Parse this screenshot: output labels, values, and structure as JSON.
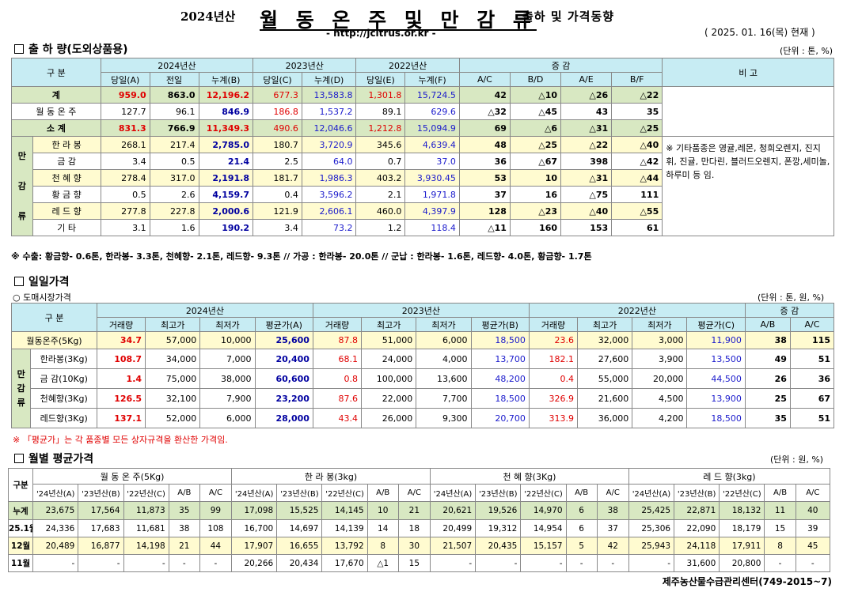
{
  "header": {
    "year": "2024년산",
    "main": "월 동 온 주 및 만 감 류",
    "sub": "출하 및 가격동향",
    "url": "- http://jcitrus.or.kr -",
    "asof": "( 2025. 01. 16(목) 현재 )"
  },
  "ship": {
    "title": "출 하 량(도외상품용)",
    "unit": "(단위 : 톤, %)",
    "h_div": "구    분",
    "h_y2024": "2024년산",
    "h_y2023": "2023년산",
    "h_y2022": "2022년산",
    "h_change": "증    감",
    "h_remark": "비 고",
    "sub": [
      "당일(A)",
      "전일",
      "누계(B)",
      "당일(C)",
      "누계(D)",
      "당일(E)",
      "누계(F)",
      "A/C",
      "B/D",
      "A/E",
      "B/F"
    ],
    "side_label": [
      "만",
      "감",
      "류"
    ],
    "rows": [
      {
        "name": "계",
        "v": [
          "959.0",
          "863.0",
          "12,196.2",
          "677.3",
          "13,583.8",
          "1,301.8",
          "15,724.5",
          "42",
          "△10",
          "△26",
          "△22"
        ]
      },
      {
        "name": "월 동 온 주",
        "v": [
          "127.7",
          "96.1",
          "846.9",
          "186.8",
          "1,537.2",
          "89.1",
          "629.6",
          "△32",
          "△45",
          "43",
          "35"
        ]
      },
      {
        "name": "소    계",
        "v": [
          "831.3",
          "766.9",
          "11,349.3",
          "490.6",
          "12,046.6",
          "1,212.8",
          "15,094.9",
          "69",
          "△6",
          "△31",
          "△25"
        ]
      },
      {
        "name": "한 라 봉",
        "v": [
          "268.1",
          "217.4",
          "2,785.0",
          "180.7",
          "3,720.9",
          "345.6",
          "4,639.4",
          "48",
          "△25",
          "△22",
          "△40"
        ]
      },
      {
        "name": "금    감",
        "v": [
          "3.4",
          "0.5",
          "21.4",
          "2.5",
          "64.0",
          "0.7",
          "37.0",
          "36",
          "△67",
          "398",
          "△42"
        ]
      },
      {
        "name": "천 혜 향",
        "v": [
          "278.4",
          "317.0",
          "2,191.8",
          "181.7",
          "1,986.3",
          "403.2",
          "3,930.45",
          "53",
          "10",
          "△31",
          "△44"
        ]
      },
      {
        "name": "황 금 향",
        "v": [
          "0.5",
          "2.6",
          "4,159.7",
          "0.4",
          "3,596.2",
          "2.1",
          "1,971.8",
          "37",
          "16",
          "△75",
          "111"
        ]
      },
      {
        "name": "레 드 향",
        "v": [
          "277.8",
          "227.8",
          "2,000.6",
          "121.9",
          "2,606.1",
          "460.0",
          "4,397.9",
          "128",
          "△23",
          "△40",
          "△55"
        ]
      },
      {
        "name": "기    타",
        "v": [
          "3.1",
          "1.6",
          "190.2",
          "3.4",
          "73.2",
          "1.2",
          "118.4",
          "△11",
          "160",
          "153",
          "61"
        ]
      }
    ],
    "remark": "※ 기타품종은 영귤,레몬, 청희오렌지, 진지휘, 진귤, 만다린, 블러드오렌지, 폰깡,세미놀, 하루미 등 임.",
    "note": "※ 수출: 황금향- 0.6톤, 한라봉- 3.3톤, 천혜향- 2.1톤, 레드향- 9.3톤  //  가공  :  한라봉- 20.0톤  //  군납 : 한라봉- 1.6톤, 레드향- 4.0톤, 황금향- 1.7톤"
  },
  "daily": {
    "title": "일일가격",
    "subtitle": "○ 도매시장가격",
    "unit": "(단위 : 톤, 원, %)",
    "h_div": "구    분",
    "h_y2024": "2024년산",
    "h_y2023": "2023년산",
    "h_y2022": "2022년산",
    "h_change": "증    감",
    "sub": [
      "거래량",
      "최고가",
      "최저가",
      "평균가(A)",
      "거래량",
      "최고가",
      "최저가",
      "평균가(B)",
      "거래량",
      "최고가",
      "최저가",
      "평균가(C)",
      "A/B",
      "A/C"
    ],
    "side_label": [
      "만",
      "감",
      "류"
    ],
    "rows": [
      {
        "name": "월동온주(5Kg)",
        "v": [
          "34.7",
          "57,000",
          "10,000",
          "25,600",
          "87.8",
          "51,000",
          "6,000",
          "18,500",
          "23.6",
          "32,000",
          "3,000",
          "11,900",
          "38",
          "115"
        ]
      },
      {
        "name": "한라봉(3Kg)",
        "v": [
          "108.7",
          "34,000",
          "7,000",
          "20,400",
          "68.1",
          "24,000",
          "4,000",
          "13,700",
          "182.1",
          "27,600",
          "3,900",
          "13,500",
          "49",
          "51"
        ]
      },
      {
        "name": "금 감(10Kg)",
        "v": [
          "1.4",
          "75,000",
          "38,000",
          "60,600",
          "0.8",
          "100,000",
          "13,600",
          "48,200",
          "0.4",
          "55,000",
          "20,000",
          "44,500",
          "26",
          "36"
        ]
      },
      {
        "name": "천혜향(3Kg)",
        "v": [
          "126.5",
          "32,100",
          "7,900",
          "23,200",
          "87.6",
          "22,000",
          "7,700",
          "18,500",
          "326.9",
          "21,600",
          "4,500",
          "13,900",
          "25",
          "67"
        ]
      },
      {
        "name": "레드향(3Kg)",
        "v": [
          "137.1",
          "52,000",
          "6,000",
          "28,000",
          "43.4",
          "26,000",
          "9,300",
          "20,700",
          "313.9",
          "36,000",
          "4,200",
          "18,500",
          "35",
          "51"
        ]
      }
    ],
    "note": "※ 「평균가」는 각 품종별 모든 상자규격을 환산한 가격임."
  },
  "monthly": {
    "title": "월별 평균가격",
    "unit": "(단위 : 원, %)",
    "h_div": "구분",
    "groups": [
      "월 동 온 주(5Kg)",
      "한 라 봉(3kg)",
      "천 혜 향(3Kg)",
      "레 드 향(3kg)"
    ],
    "sub": [
      "'24년산(A)",
      "'23년산(B)",
      "'22년산(C)",
      "A/B",
      "A/C"
    ],
    "rows": [
      {
        "name": "누계",
        "v": [
          "23,675",
          "17,564",
          "11,873",
          "35",
          "99",
          "17,098",
          "15,525",
          "14,145",
          "10",
          "21",
          "20,621",
          "19,526",
          "14,970",
          "6",
          "38",
          "25,425",
          "22,871",
          "18,132",
          "11",
          "40"
        ]
      },
      {
        "name": "25.1월",
        "v": [
          "24,336",
          "17,683",
          "11,681",
          "38",
          "108",
          "16,700",
          "14,697",
          "14,139",
          "14",
          "18",
          "20,499",
          "19,312",
          "14,954",
          "6",
          "37",
          "25,306",
          "22,090",
          "18,179",
          "15",
          "39"
        ]
      },
      {
        "name": "12월",
        "v": [
          "20,489",
          "16,877",
          "14,198",
          "21",
          "44",
          "17,907",
          "16,655",
          "13,792",
          "8",
          "30",
          "21,507",
          "20,435",
          "15,157",
          "5",
          "42",
          "25,943",
          "24,118",
          "17,911",
          "8",
          "45"
        ]
      },
      {
        "name": "11월",
        "v": [
          "-",
          "-",
          "-",
          "-",
          "-",
          "20,266",
          "20,434",
          "17,670",
          "△1",
          "15",
          "-",
          "-",
          "-",
          "-",
          "-",
          "-",
          "31,600",
          "20,800",
          "-",
          "-"
        ]
      }
    ]
  },
  "footer": "제주농산물수급관리센터(749-2015~7)"
}
